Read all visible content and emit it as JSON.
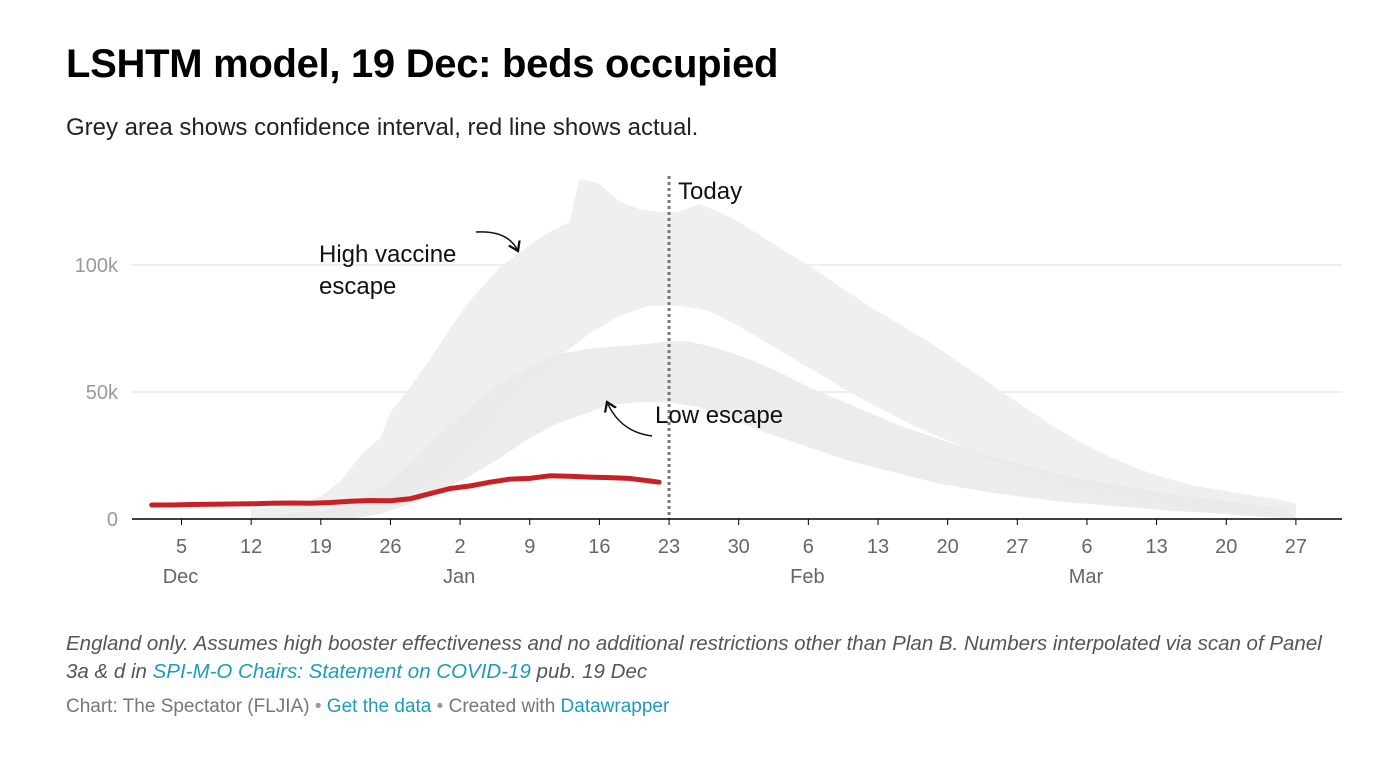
{
  "title": "LSHTM model, 19 Dec: beds occupied",
  "subtitle": "Grey area shows confidence interval, red line shows actual.",
  "notes": {
    "text_before": "England only. Assumes high booster effectiveness and no additional restrictions other than Plan B. Numbers interpolated via scan of Panel 3a & d in ",
    "link": "SPI-M-O Chairs: Statement on COVID-19",
    "text_after": " pub. 19 Dec"
  },
  "credits": {
    "chart_by": "Chart: The Spectator (FLJIA)",
    "sep1": "•",
    "get_data": "Get the data",
    "sep2": "•",
    "created_with": "Created with",
    "datawrapper": "Datawrapper"
  },
  "colors": {
    "actual": "#c92026",
    "band_high": "#efefef",
    "band_low": "#e9e9e9",
    "overlap": "#dddddd",
    "today_line": "#777777",
    "grid": "#dddddd",
    "axis": "#000000",
    "tick_text": "#666666",
    "y_tick_text": "#999999"
  },
  "chart_data": {
    "type": "area",
    "title": "LSHTM model, 19 Dec: beds occupied",
    "subtitle": "Grey area shows confidence interval, red line shows actual.",
    "x_unit": "days from 1 Dec 2021",
    "x_range": [
      0,
      118
    ],
    "ylim": [
      0,
      140000
    ],
    "y_ticks": [
      {
        "value": 0,
        "label": "0"
      },
      {
        "value": 50000,
        "label": "50k"
      },
      {
        "value": 100000,
        "label": "100k"
      }
    ],
    "grid": true,
    "x_ticks": [
      {
        "day": 4,
        "label": "5",
        "month": "Dec"
      },
      {
        "day": 11,
        "label": "12"
      },
      {
        "day": 18,
        "label": "19"
      },
      {
        "day": 25,
        "label": "26"
      },
      {
        "day": 32,
        "label": "2",
        "month": "Jan"
      },
      {
        "day": 39,
        "label": "9"
      },
      {
        "day": 46,
        "label": "16"
      },
      {
        "day": 53,
        "label": "23"
      },
      {
        "day": 60,
        "label": "30"
      },
      {
        "day": 67,
        "label": "6",
        "month": "Feb"
      },
      {
        "day": 74,
        "label": "13"
      },
      {
        "day": 81,
        "label": "20"
      },
      {
        "day": 88,
        "label": "27"
      },
      {
        "day": 95,
        "label": "6",
        "month": "Mar"
      },
      {
        "day": 102,
        "label": "13"
      },
      {
        "day": 109,
        "label": "20"
      },
      {
        "day": 116,
        "label": "27"
      }
    ],
    "today": {
      "day": 53,
      "label": "Today"
    },
    "series": [
      {
        "kind": "band",
        "upper": [
          [
            11,
            4000
          ],
          [
            15,
            5000
          ],
          [
            18,
            9000
          ],
          [
            20,
            15000
          ],
          [
            22,
            25000
          ],
          [
            24,
            32000
          ],
          [
            25,
            42000
          ],
          [
            27,
            52000
          ],
          [
            29,
            63000
          ],
          [
            31,
            75000
          ],
          [
            33,
            86000
          ],
          [
            36,
            99000
          ],
          [
            39,
            108000
          ],
          [
            41,
            113000
          ],
          [
            43,
            117000
          ],
          [
            44,
            134000
          ],
          [
            46,
            132000
          ],
          [
            48,
            125000
          ],
          [
            50,
            122000
          ],
          [
            52,
            121000
          ],
          [
            54,
            121000
          ],
          [
            56,
            124000
          ],
          [
            58,
            121000
          ],
          [
            60,
            117000
          ],
          [
            62,
            112000
          ],
          [
            64,
            107000
          ],
          [
            67,
            100000
          ],
          [
            70,
            92000
          ],
          [
            73,
            84000
          ],
          [
            76,
            77000
          ],
          [
            79,
            70000
          ],
          [
            82,
            62000
          ],
          [
            85,
            54000
          ],
          [
            88,
            46000
          ],
          [
            91,
            38000
          ],
          [
            94,
            31000
          ],
          [
            97,
            25000
          ],
          [
            100,
            20000
          ],
          [
            103,
            16000
          ],
          [
            106,
            13000
          ],
          [
            109,
            11000
          ],
          [
            112,
            9000
          ],
          [
            114,
            8000
          ],
          [
            116,
            6000
          ]
        ],
        "lower": [
          [
            11,
            0
          ],
          [
            15,
            0
          ],
          [
            18,
            0
          ],
          [
            21,
            1000
          ],
          [
            24,
            4000
          ],
          [
            27,
            9000
          ],
          [
            30,
            17000
          ],
          [
            33,
            29000
          ],
          [
            36,
            42000
          ],
          [
            39,
            54000
          ],
          [
            42,
            64000
          ],
          [
            45,
            73000
          ],
          [
            48,
            80000
          ],
          [
            51,
            84000
          ],
          [
            54,
            84000
          ],
          [
            57,
            82000
          ],
          [
            60,
            76000
          ],
          [
            63,
            69000
          ],
          [
            66,
            62000
          ],
          [
            69,
            55000
          ],
          [
            72,
            48000
          ],
          [
            75,
            42000
          ],
          [
            78,
            36000
          ],
          [
            81,
            31000
          ],
          [
            84,
            26000
          ],
          [
            87,
            21000
          ],
          [
            90,
            17000
          ],
          [
            93,
            13000
          ],
          [
            96,
            10000
          ],
          [
            99,
            8000
          ],
          [
            102,
            6000
          ],
          [
            105,
            4500
          ],
          [
            108,
            3000
          ],
          [
            111,
            2000
          ],
          [
            114,
            1000
          ],
          [
            116,
            500
          ]
        ]
      },
      {
        "kind": "band",
        "upper": [
          [
            14,
            2000
          ],
          [
            18,
            3000
          ],
          [
            21,
            6000
          ],
          [
            24,
            12000
          ],
          [
            27,
            22000
          ],
          [
            30,
            33000
          ],
          [
            33,
            44000
          ],
          [
            36,
            53000
          ],
          [
            39,
            60000
          ],
          [
            42,
            65000
          ],
          [
            45,
            67000
          ],
          [
            48,
            68000
          ],
          [
            51,
            69000
          ],
          [
            53,
            70000
          ],
          [
            55,
            70000
          ],
          [
            58,
            67000
          ],
          [
            61,
            63000
          ],
          [
            64,
            58000
          ],
          [
            67,
            52000
          ],
          [
            70,
            47000
          ],
          [
            73,
            42000
          ],
          [
            76,
            37000
          ],
          [
            79,
            33000
          ],
          [
            82,
            29000
          ],
          [
            85,
            25000
          ],
          [
            88,
            22000
          ],
          [
            91,
            19000
          ],
          [
            94,
            16000
          ],
          [
            97,
            14000
          ],
          [
            100,
            12000
          ],
          [
            103,
            10000
          ],
          [
            106,
            8500
          ],
          [
            109,
            7000
          ],
          [
            112,
            5500
          ],
          [
            115,
            4000
          ]
        ],
        "lower": [
          [
            14,
            0
          ],
          [
            18,
            0
          ],
          [
            21,
            0
          ],
          [
            24,
            2000
          ],
          [
            27,
            6000
          ],
          [
            30,
            11000
          ],
          [
            33,
            17000
          ],
          [
            36,
            24000
          ],
          [
            39,
            32000
          ],
          [
            42,
            38000
          ],
          [
            45,
            42000
          ],
          [
            47,
            45000
          ],
          [
            50,
            46000
          ],
          [
            53,
            46000
          ],
          [
            56,
            44000
          ],
          [
            59,
            40000
          ],
          [
            62,
            35000
          ],
          [
            65,
            31000
          ],
          [
            68,
            27000
          ],
          [
            71,
            23000
          ],
          [
            74,
            20000
          ],
          [
            77,
            17000
          ],
          [
            80,
            14000
          ],
          [
            83,
            12000
          ],
          [
            86,
            10000
          ],
          [
            89,
            8500
          ],
          [
            92,
            7000
          ],
          [
            95,
            6000
          ],
          [
            98,
            5000
          ],
          [
            101,
            4000
          ],
          [
            104,
            3000
          ],
          [
            107,
            2500
          ],
          [
            110,
            1500
          ],
          [
            113,
            800
          ],
          [
            116,
            200
          ]
        ]
      },
      {
        "kind": "line",
        "points": [
          [
            1,
            5500
          ],
          [
            3,
            5500
          ],
          [
            5,
            5700
          ],
          [
            7,
            5800
          ],
          [
            9,
            5900
          ],
          [
            11,
            6000
          ],
          [
            13,
            6200
          ],
          [
            15,
            6300
          ],
          [
            17,
            6200
          ],
          [
            19,
            6500
          ],
          [
            21,
            7000
          ],
          [
            23,
            7300
          ],
          [
            25,
            7200
          ],
          [
            27,
            8000
          ],
          [
            29,
            10000
          ],
          [
            31,
            12000
          ],
          [
            33,
            13000
          ],
          [
            35,
            14500
          ],
          [
            37,
            15700
          ],
          [
            39,
            16000
          ],
          [
            41,
            17000
          ],
          [
            43,
            16800
          ],
          [
            45,
            16500
          ],
          [
            47,
            16300
          ],
          [
            49,
            16000
          ],
          [
            51,
            15000
          ],
          [
            52,
            14500
          ]
        ]
      }
    ],
    "annotations": [
      {
        "text": "High vaccine escape",
        "line1": "High vaccine",
        "line2": "escape"
      },
      {
        "text": "Low escape"
      }
    ]
  }
}
